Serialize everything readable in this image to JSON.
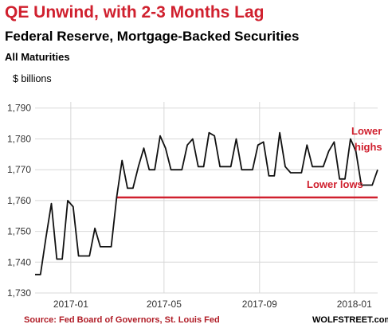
{
  "title": "QE Unwind, with 2-3 Months Lag",
  "subtitle": "Federal Reserve, Mortgage-Backed Securities",
  "subsubtitle": "All Maturities",
  "source": "Source: Fed Board of Governors, St. Louis Fed",
  "credit": "WOLFSTREET.com",
  "colors": {
    "title": "#d0202e",
    "line": "#111111",
    "reference": "#d0202e",
    "grid": "#d8d8d8"
  },
  "chart_data": {
    "type": "line",
    "title": "QE Unwind, with 2-3 Months Lag",
    "subtitle": "Federal Reserve, Mortgage-Backed Securities",
    "ylabel": "$ billions",
    "ylim": [
      1730,
      1792
    ],
    "yticks": [
      1730,
      1740,
      1750,
      1760,
      1770,
      1780,
      1790
    ],
    "ytick_labels": [
      "1,730",
      "1,740",
      "1,750",
      "1,760",
      "1,770",
      "1,780",
      "1,790"
    ],
    "xlim": [
      "2016-11-16",
      "2018-01-31"
    ],
    "xticks": [
      "2017-01-01",
      "2017-05-01",
      "2017-09-01",
      "2018-01-01"
    ],
    "xtick_labels": [
      "2017-01",
      "2017-05",
      "2017-09",
      "2018-01"
    ],
    "grid": true,
    "series": [
      {
        "x": [
          "2016-11-16",
          "2016-11-23",
          "2016-11-30",
          "2016-12-07",
          "2016-12-14",
          "2016-12-21",
          "2016-12-28",
          "2017-01-04",
          "2017-01-11",
          "2017-01-18",
          "2017-01-25",
          "2017-02-01",
          "2017-02-08",
          "2017-02-15",
          "2017-02-22",
          "2017-03-01",
          "2017-03-08",
          "2017-03-15",
          "2017-03-22",
          "2017-03-29",
          "2017-04-05",
          "2017-04-12",
          "2017-04-19",
          "2017-04-26",
          "2017-05-03",
          "2017-05-10",
          "2017-05-17",
          "2017-05-24",
          "2017-05-31",
          "2017-06-07",
          "2017-06-14",
          "2017-06-21",
          "2017-06-28",
          "2017-07-05",
          "2017-07-12",
          "2017-07-19",
          "2017-07-26",
          "2017-08-02",
          "2017-08-09",
          "2017-08-16",
          "2017-08-23",
          "2017-08-30",
          "2017-09-06",
          "2017-09-13",
          "2017-09-20",
          "2017-09-27",
          "2017-10-04",
          "2017-10-11",
          "2017-10-18",
          "2017-10-25",
          "2017-11-01",
          "2017-11-08",
          "2017-11-15",
          "2017-11-22",
          "2017-11-29",
          "2017-12-06",
          "2017-12-13",
          "2017-12-20",
          "2017-12-27",
          "2018-01-03",
          "2018-01-10",
          "2018-01-17",
          "2018-01-24",
          "2018-01-31"
        ],
        "values": [
          1736,
          1736,
          1748,
          1759,
          1741,
          1741,
          1760,
          1758,
          1742,
          1742,
          1742,
          1751,
          1745,
          1745,
          1745,
          1761,
          1773,
          1764,
          1764,
          1771,
          1777,
          1770,
          1770,
          1781,
          1777,
          1770,
          1770,
          1770,
          1778,
          1780,
          1771,
          1771,
          1782,
          1781,
          1771,
          1771,
          1771,
          1780,
          1770,
          1770,
          1770,
          1778,
          1779,
          1768,
          1768,
          1782,
          1771,
          1769,
          1769,
          1769,
          1778,
          1771,
          1771,
          1771,
          1776,
          1779,
          1767,
          1767,
          1780,
          1776,
          1765,
          1765,
          1765,
          1770
        ]
      }
    ],
    "reference_line": {
      "y": 1761,
      "x_from": "2017-03-01",
      "x_to": "2018-01-31",
      "label": "Lower lows"
    },
    "annotations": [
      {
        "text": "Lower",
        "position": "upper-right"
      },
      {
        "text": "highs",
        "position": "upper-right"
      },
      {
        "text": "Lower lows",
        "position": "right"
      }
    ]
  }
}
